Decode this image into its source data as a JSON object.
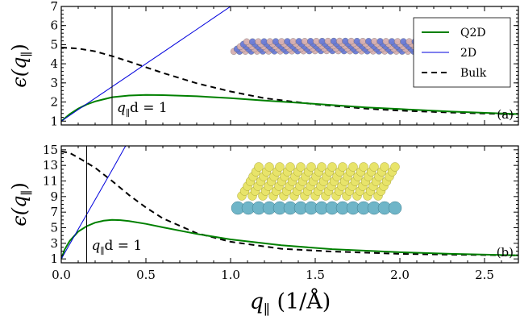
{
  "chart_data": [
    {
      "type": "line",
      "panel_label": "(a)",
      "ylabel_base": "ϵ(q",
      "ylabel_sub": "∥",
      "ylabel_close": ")",
      "xlim": [
        0,
        2.7
      ],
      "ylim": [
        0.8,
        7
      ],
      "yticks": [
        1,
        2,
        3,
        4,
        5,
        6,
        7
      ],
      "xticks": [
        0.0,
        0.5,
        1.0,
        1.5,
        2.0,
        2.5
      ],
      "vline": {
        "x": 0.3,
        "label_q": "q",
        "label_sub": "∥",
        "label_rest": "d = 1"
      },
      "legend": {
        "position": "top-right",
        "entries": [
          "Q2D",
          "2D",
          "Bulk"
        ]
      },
      "series": [
        {
          "name": "Q2D",
          "color": "#008000",
          "style": "solid",
          "x": [
            0,
            0.05,
            0.1,
            0.15,
            0.2,
            0.3,
            0.4,
            0.5,
            0.6,
            0.8,
            1.0,
            1.2,
            1.5,
            1.8,
            2.0,
            2.3,
            2.7
          ],
          "y": [
            1.0,
            1.37,
            1.65,
            1.87,
            2.03,
            2.25,
            2.34,
            2.37,
            2.36,
            2.3,
            2.2,
            2.08,
            1.9,
            1.72,
            1.63,
            1.5,
            1.37
          ]
        },
        {
          "name": "2D",
          "color": "#0000dd",
          "style": "solid",
          "x": [
            0,
            0.1,
            0.2,
            0.3,
            0.4,
            0.5,
            0.6,
            0.7,
            0.8,
            0.9,
            1.0
          ],
          "y": [
            1.0,
            1.6,
            2.2,
            2.8,
            3.4,
            4.0,
            4.6,
            5.2,
            5.8,
            6.4,
            7.0
          ]
        },
        {
          "name": "Bulk",
          "color": "#000000",
          "style": "dashed",
          "x": [
            0,
            0.1,
            0.2,
            0.3,
            0.4,
            0.5,
            0.6,
            0.8,
            1.0,
            1.2,
            1.5,
            1.8,
            2.0,
            2.3,
            2.7
          ],
          "y": [
            4.85,
            4.8,
            4.65,
            4.4,
            4.12,
            3.82,
            3.52,
            2.98,
            2.55,
            2.2,
            1.88,
            1.65,
            1.55,
            1.45,
            1.35
          ]
        }
      ]
    },
    {
      "type": "line",
      "panel_label": "(b)",
      "ylabel_base": "ϵ(q",
      "ylabel_sub": "∥",
      "ylabel_close": ")",
      "xlim": [
        0,
        2.7
      ],
      "ylim": [
        0.5,
        15.5
      ],
      "yticks": [
        1,
        3,
        5,
        7,
        9,
        11,
        13,
        15
      ],
      "xticks": [
        0.0,
        0.5,
        1.0,
        1.5,
        2.0,
        2.5
      ],
      "xtick_labels": [
        "0.0",
        "0.5",
        "1.0",
        "1.5",
        "2.0",
        "2.5"
      ],
      "xlabel_q": "q",
      "xlabel_sub": "∥",
      "xlabel_unit": "(1/Å)",
      "vline": {
        "x": 0.15,
        "label_q": "q",
        "label_sub": "∥",
        "label_rest": "d = 1"
      },
      "series": [
        {
          "name": "Q2D",
          "color": "#008000",
          "style": "solid",
          "x": [
            0,
            0.02,
            0.05,
            0.1,
            0.15,
            0.2,
            0.25,
            0.3,
            0.35,
            0.4,
            0.5,
            0.6,
            0.8,
            1.0,
            1.3,
            1.6,
            2.0,
            2.3,
            2.7
          ],
          "y": [
            1.0,
            2.2,
            3.3,
            4.5,
            5.2,
            5.65,
            5.9,
            6.0,
            5.97,
            5.85,
            5.5,
            5.05,
            4.2,
            3.5,
            2.75,
            2.25,
            1.85,
            1.65,
            1.45
          ]
        },
        {
          "name": "2D",
          "color": "#0000dd",
          "style": "solid",
          "x": [
            0,
            0.1,
            0.2,
            0.3,
            0.38
          ],
          "y": [
            1.0,
            4.8,
            8.6,
            12.4,
            15.5
          ]
        },
        {
          "name": "Bulk",
          "color": "#000000",
          "style": "dashed",
          "x": [
            0,
            0.05,
            0.1,
            0.2,
            0.3,
            0.4,
            0.5,
            0.6,
            0.8,
            1.0,
            1.3,
            1.6,
            2.0,
            2.3,
            2.7
          ],
          "y": [
            14.8,
            14.6,
            14.0,
            12.7,
            11.0,
            9.2,
            7.6,
            6.2,
            4.3,
            3.2,
            2.3,
            1.95,
            1.65,
            1.55,
            1.45
          ]
        }
      ]
    }
  ],
  "illustrations": [
    {
      "name": "2D lattice sheet",
      "atom_colors": [
        "#d8b0b0",
        "#6b7cd6"
      ]
    },
    {
      "name": "layered crystal slab",
      "atom_colors": [
        "#e8e46a",
        "#6fb5c8"
      ]
    }
  ]
}
